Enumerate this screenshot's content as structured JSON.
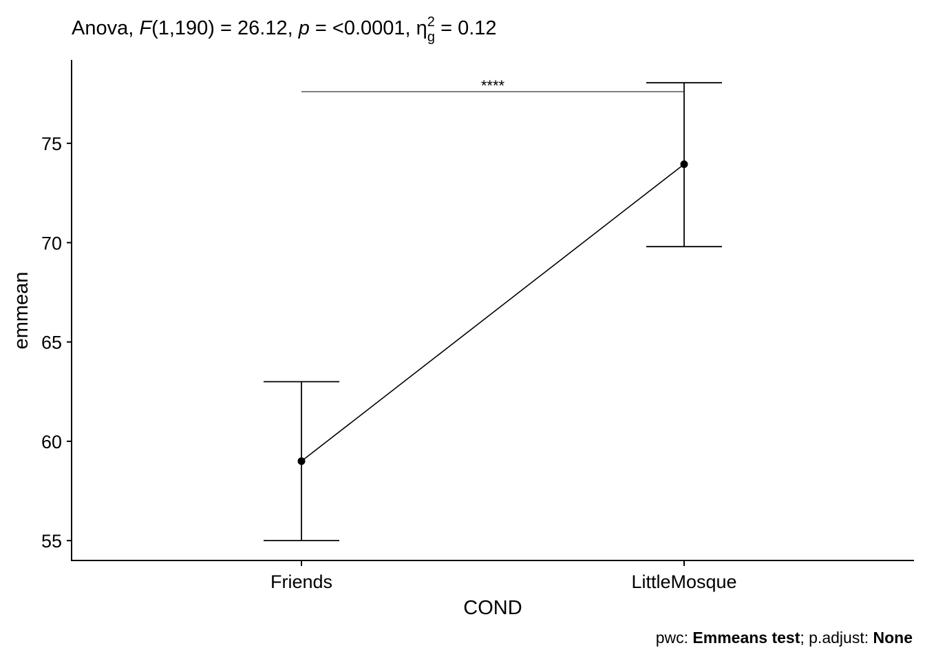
{
  "chart_data": {
    "type": "line",
    "title": {
      "prefix": "Anova, ",
      "stat_symbol": "F",
      "df": "(1,190)",
      "stat_value": " = 26.12, ",
      "p_symbol": "p",
      "p_value": " = <0.0001, ",
      "effect_symbol": "η",
      "effect_sup": "2",
      "effect_sub": "g",
      "effect_value": " = 0.12"
    },
    "xlabel": "COND",
    "ylabel": "emmean",
    "categories": [
      "Friends",
      "LittleMosque"
    ],
    "series": [
      {
        "values": [
          59.0,
          73.95
        ],
        "ci_lower": [
          55.0,
          69.8
        ],
        "ci_upper": [
          63.0,
          78.05
        ]
      }
    ],
    "ylim": [
      54.0,
      79.2
    ],
    "yticks": [
      55,
      60,
      65,
      70,
      75
    ],
    "grid": false,
    "significance": {
      "from": "Friends",
      "to": "LittleMosque",
      "y": 77.6,
      "label": "****"
    },
    "caption": {
      "prefix": "pwc: ",
      "test": "Emmeans test",
      "middle": "; p.adjust: ",
      "adjust": "None"
    },
    "colors": {
      "line": "#000000",
      "point": "#000000",
      "background": "#ffffff"
    }
  }
}
